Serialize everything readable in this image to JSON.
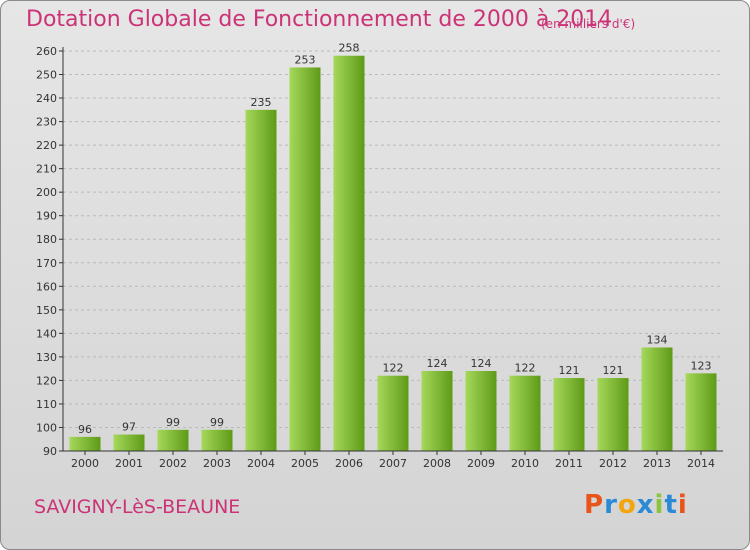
{
  "header": {
    "title": "Dotation Globale de Fonctionnement de 2000 à 2014",
    "unit": "(en milliers d'€)"
  },
  "footer": {
    "commune": "SAVIGNY-LèS-BEAUNE",
    "logo": "Proxiti"
  },
  "colors": {
    "title": "#cc3377",
    "bar_light": "#a6d85a",
    "bar_dark": "#5e9a18",
    "grid": "#b9b9b9",
    "axis": "#333333",
    "logo_letters": [
      "#e8541a",
      "#2a8ad6",
      "#f2a50f",
      "#2a8ad6",
      "#8bc43f",
      "#2a8ad6",
      "#e8541a"
    ]
  },
  "chart_data": {
    "type": "bar",
    "categories": [
      "2000",
      "2001",
      "2002",
      "2003",
      "2004",
      "2005",
      "2006",
      "2007",
      "2008",
      "2009",
      "2010",
      "2011",
      "2012",
      "2013",
      "2014"
    ],
    "values": [
      96,
      97,
      99,
      99,
      235,
      253,
      258,
      122,
      124,
      124,
      122,
      121,
      121,
      134,
      123
    ],
    "ylim": [
      90,
      260
    ],
    "yticks": [
      90,
      100,
      110,
      120,
      130,
      140,
      150,
      160,
      170,
      180,
      190,
      200,
      210,
      220,
      230,
      240,
      250,
      260
    ],
    "grid": true,
    "data_labels": true
  }
}
